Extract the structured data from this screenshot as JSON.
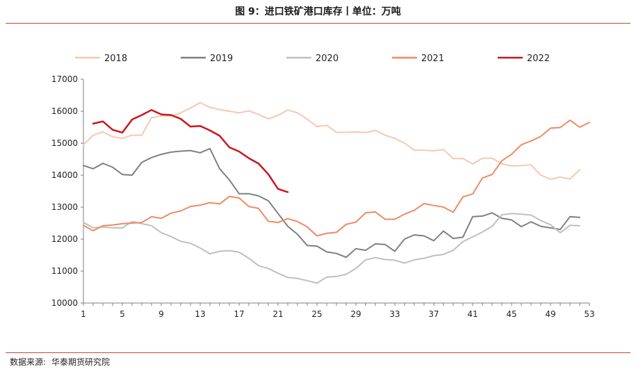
{
  "header": {
    "title": "图 9：进口铁矿港口库存丨单位：万吨"
  },
  "footer": {
    "source_label": "数据来源:",
    "source_value": "华泰期货研究院"
  },
  "chart_data": {
    "type": "line",
    "title": "图 9：进口铁矿港口库存丨单位：万吨",
    "xlabel": "",
    "ylabel": "",
    "xlim": [
      1,
      53
    ],
    "ylim": [
      10000,
      17000
    ],
    "xticks": [
      1,
      5,
      9,
      13,
      17,
      21,
      25,
      29,
      33,
      37,
      41,
      45,
      49,
      53
    ],
    "yticks": [
      10000,
      11000,
      12000,
      13000,
      14000,
      15000,
      16000,
      17000
    ],
    "grid": false,
    "legend_position": "top",
    "series": [
      {
        "name": "2018",
        "color": "#f7c6b3",
        "width": 2,
        "x": [
          1,
          2,
          3,
          4,
          5,
          6,
          7,
          8,
          9,
          10,
          11,
          12,
          13,
          14,
          15,
          16,
          17,
          18,
          19,
          20,
          21,
          22,
          23,
          24,
          25,
          26,
          27,
          28,
          29,
          30,
          31,
          32,
          33,
          34,
          35,
          36,
          37,
          38,
          39,
          40,
          41,
          42,
          43,
          44,
          45,
          46,
          47,
          48,
          49,
          50,
          51,
          52
        ],
        "y": [
          14950,
          15250,
          15350,
          15200,
          15150,
          15250,
          15250,
          15800,
          15850,
          15850,
          15950,
          16100,
          16270,
          16120,
          16050,
          16000,
          15950,
          16010,
          15900,
          15760,
          15870,
          16040,
          15950,
          15750,
          15520,
          15560,
          15340,
          15340,
          15350,
          15330,
          15400,
          15250,
          15150,
          15000,
          14780,
          14780,
          14760,
          14800,
          14520,
          14520,
          14350,
          14530,
          14530,
          14350,
          14290,
          14300,
          14320,
          14000,
          13870,
          13940,
          13880,
          14170
        ]
      },
      {
        "name": "2019",
        "color": "#7f7f7f",
        "width": 2,
        "x": [
          1,
          2,
          3,
          4,
          5,
          6,
          7,
          8,
          9,
          10,
          11,
          12,
          13,
          14,
          15,
          16,
          17,
          18,
          19,
          20,
          21,
          22,
          23,
          24,
          25,
          26,
          27,
          28,
          29,
          30,
          31,
          32,
          33,
          34,
          35,
          36,
          37,
          38,
          39,
          40,
          41,
          42,
          43,
          44,
          45,
          46,
          47,
          48,
          49,
          50,
          51,
          52
        ],
        "y": [
          14300,
          14200,
          14370,
          14250,
          14020,
          14000,
          14400,
          14550,
          14650,
          14720,
          14750,
          14770,
          14700,
          14830,
          14200,
          13850,
          13420,
          13420,
          13350,
          13200,
          12800,
          12400,
          12150,
          11800,
          11780,
          11600,
          11550,
          11430,
          11700,
          11650,
          11850,
          11830,
          11620,
          12000,
          12130,
          12100,
          11950,
          12250,
          12020,
          12060,
          12700,
          12720,
          12820,
          12650,
          12600,
          12390,
          12540,
          12400,
          12350,
          12300,
          12700,
          12680
        ]
      },
      {
        "name": "2020",
        "color": "#bfbfbf",
        "width": 2,
        "x": [
          1,
          2,
          3,
          4,
          5,
          6,
          7,
          8,
          9,
          10,
          11,
          12,
          13,
          14,
          15,
          16,
          17,
          18,
          19,
          20,
          21,
          22,
          23,
          24,
          25,
          26,
          27,
          28,
          29,
          30,
          31,
          32,
          33,
          34,
          35,
          36,
          37,
          38,
          39,
          40,
          41,
          42,
          43,
          44,
          45,
          46,
          47,
          48,
          49,
          50,
          51,
          52
        ],
        "y": [
          12520,
          12350,
          12380,
          12350,
          12350,
          12550,
          12480,
          12420,
          12200,
          12080,
          11930,
          11870,
          11720,
          11540,
          11620,
          11640,
          11590,
          11400,
          11170,
          11080,
          10930,
          10800,
          10770,
          10700,
          10620,
          10810,
          10830,
          10900,
          11080,
          11350,
          11420,
          11360,
          11340,
          11250,
          11350,
          11400,
          11480,
          11520,
          11650,
          11920,
          12070,
          12220,
          12400,
          12760,
          12800,
          12780,
          12750,
          12580,
          12450,
          12200,
          12430,
          12420
        ]
      },
      {
        "name": "2021",
        "color": "#ee8a63",
        "width": 2,
        "x": [
          1,
          2,
          3,
          4,
          5,
          6,
          7,
          8,
          9,
          10,
          11,
          12,
          13,
          14,
          15,
          16,
          17,
          18,
          19,
          20,
          21,
          22,
          23,
          24,
          25,
          26,
          27,
          28,
          29,
          30,
          31,
          32,
          33,
          34,
          35,
          36,
          37,
          38,
          39,
          40,
          41,
          42,
          43,
          44,
          45,
          46,
          47,
          48,
          49,
          50,
          51,
          52,
          53
        ],
        "y": [
          12430,
          12260,
          12420,
          12440,
          12480,
          12500,
          12520,
          12700,
          12650,
          12810,
          12880,
          13020,
          13060,
          13140,
          13100,
          13330,
          13290,
          13020,
          12960,
          12560,
          12520,
          12640,
          12550,
          12380,
          12100,
          12180,
          12210,
          12460,
          12530,
          12820,
          12850,
          12620,
          12620,
          12780,
          12900,
          13110,
          13050,
          13000,
          12840,
          13320,
          13410,
          13910,
          14020,
          14450,
          14650,
          14950,
          15070,
          15210,
          15470,
          15490,
          15720,
          15500,
          15650
        ]
      },
      {
        "name": "2022",
        "color": "#c8161d",
        "width": 2.5,
        "x": [
          2,
          3,
          4,
          5,
          6,
          7,
          8,
          9,
          10,
          11,
          12,
          13,
          14,
          15,
          16,
          17,
          18,
          19,
          20,
          21,
          22
        ],
        "y": [
          15610,
          15680,
          15420,
          15330,
          15740,
          15880,
          16040,
          15900,
          15880,
          15760,
          15520,
          15540,
          15400,
          15230,
          14870,
          14740,
          14530,
          14360,
          14030,
          13570,
          13470
        ]
      }
    ]
  }
}
